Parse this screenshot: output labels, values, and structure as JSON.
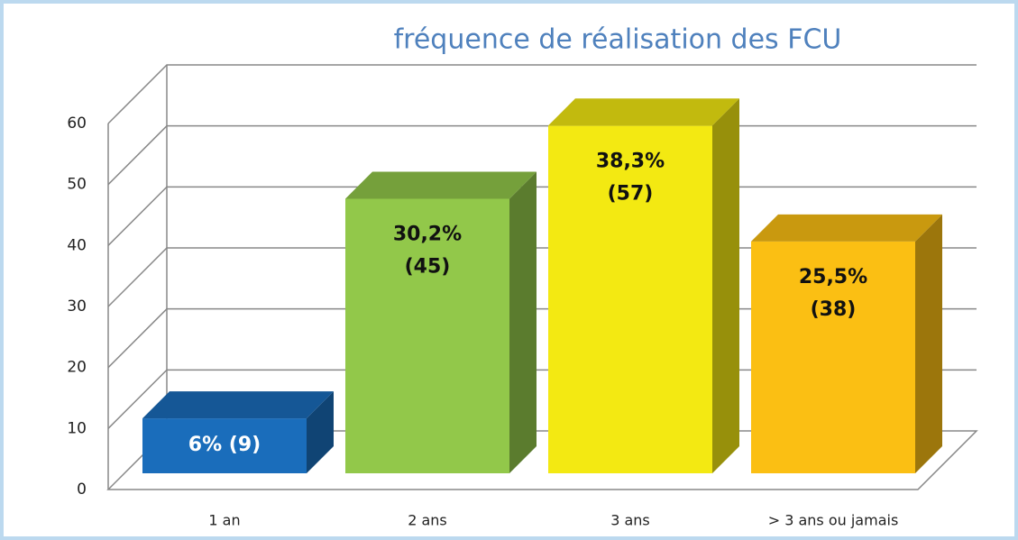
{
  "chart_data": {
    "type": "bar3d",
    "title": "fréquence de réalisation des FCU",
    "categories": [
      "1 an",
      "2 ans",
      "3 ans",
      "> 3 ans ou jamais"
    ],
    "values": [
      9,
      45,
      57,
      38
    ],
    "value_labels": [
      "6% (9)",
      "30,2% (45)",
      "38,3% (57)",
      "25,5% (38)"
    ],
    "colors": [
      "#1a6dbb",
      "#92c84a",
      "#f3e912",
      "#fbbf13"
    ],
    "value_label_colors": [
      "#ffffff",
      "#111111",
      "#111111",
      "#111111"
    ],
    "ylim": [
      0,
      60
    ],
    "yticks": [
      0,
      10,
      20,
      30,
      40,
      50,
      60
    ],
    "grid": true
  }
}
